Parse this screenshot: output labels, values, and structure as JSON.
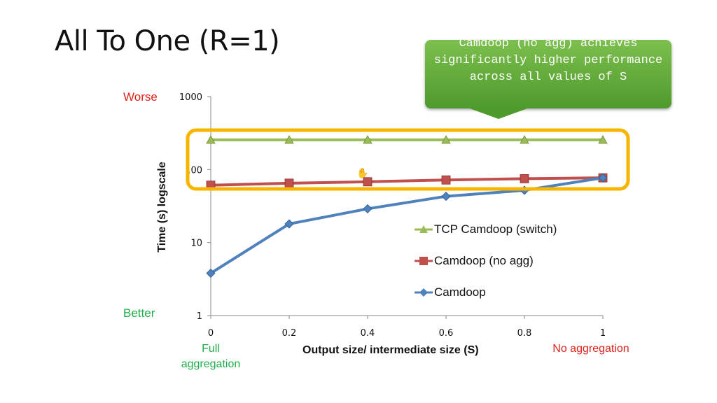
{
  "slide": {
    "title": "All To One (R=1)",
    "callout": "Camdoop (no agg) achieves significantly higher performance across all values of S",
    "worse_label": "Worse",
    "better_label": "Better",
    "left_note": "Full aggregation",
    "right_note": "No aggregation",
    "colors": {
      "green_text": "#1fae4b",
      "red_text": "#e0211a",
      "highlight": "#f7b500",
      "callout": "#5ea83a"
    }
  },
  "chart_data": {
    "type": "line",
    "x": [
      0,
      0.2,
      0.4,
      0.6,
      0.8,
      1
    ],
    "x_tick_labels": [
      "0",
      "0.2",
      "0.4",
      "0.6",
      "0.8",
      "1"
    ],
    "y_scale": "log",
    "ylim": [
      1,
      1000
    ],
    "y_tick_labels": [
      "1",
      "10",
      "100",
      "1000"
    ],
    "xlabel": "Output size/ intermediate size (S)",
    "ylabel": "Time (s) logscale",
    "grid": false,
    "legend_position": "right",
    "series": [
      {
        "name": "TCP Camdoop (switch)",
        "color": "#9bbb59",
        "marker": "triangle",
        "values": [
          255,
          255,
          255,
          255,
          255,
          255
        ]
      },
      {
        "name": "Camdoop (no agg)",
        "color": "#c0504d",
        "marker": "square",
        "values": [
          61,
          65,
          68,
          72,
          75,
          77
        ]
      },
      {
        "name": "Camdoop",
        "color": "#4f81bd",
        "marker": "diamond",
        "values": [
          3.8,
          18,
          29,
          43,
          52,
          77
        ]
      }
    ]
  }
}
